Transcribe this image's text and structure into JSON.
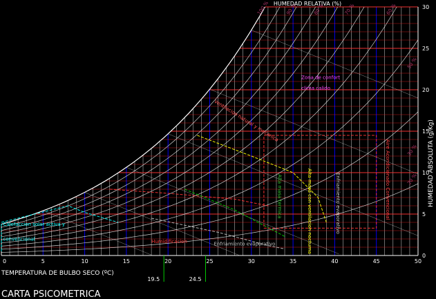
{
  "chart_data": {
    "type": "line",
    "title": "CARTA PSICOMETRICA",
    "xlabel": "TEMPERATURA DE BULBO SECO (ºC)",
    "ylabel": "HUMEDAD ABSOLUTA (g/Kg)",
    "top_label": "HUMEDAD RELATIVA (%)",
    "xlim": [
      0,
      50
    ],
    "ylim": [
      0,
      30
    ],
    "x_ticks": [
      0,
      5,
      10,
      15,
      20,
      25,
      30,
      35,
      40,
      45,
      50
    ],
    "y_ticks": [
      0,
      5,
      10,
      15,
      20,
      25,
      30
    ],
    "rh_curves": [
      10,
      20,
      30,
      40,
      50,
      60,
      70,
      80,
      90,
      100
    ],
    "rh_labels": [
      {
        "text": "100 %",
        "x": 31,
        "y": 29
      },
      {
        "text": "90 %",
        "x": 34.5,
        "y": 29
      },
      {
        "text": "80 %",
        "x": 37.8,
        "y": 29
      },
      {
        "text": "70 %",
        "x": 41.5,
        "y": 29
      },
      {
        "text": "60 %",
        "x": 46.5,
        "y": 29
      },
      {
        "text": "50 %",
        "x": 49,
        "y": 22.5
      },
      {
        "text": "30 %",
        "x": 49,
        "y": 12
      },
      {
        "text": "20 %",
        "x": 49,
        "y": 8.5
      }
    ],
    "markers": [
      {
        "label": "19.5",
        "x": 19.5,
        "color": "#00cc00"
      },
      {
        "label": "24.5",
        "x": 24.5,
        "color": "#00cc00"
      }
    ],
    "zones": [
      {
        "name": "Calefaccion solar activa y convencional",
        "color": "#00ffff",
        "points": [
          [
            0,
            0.5
          ],
          [
            0,
            4
          ],
          [
            8,
            6
          ],
          [
            10,
            5.2
          ],
          [
            12,
            4.6
          ],
          [
            14,
            4
          ]
        ]
      },
      {
        "name": "Ventilacion natural y mecanica",
        "color": "#ff3333",
        "points": [
          [
            13,
            8
          ],
          [
            20,
            7.5
          ],
          [
            28,
            6.8
          ],
          [
            32,
            6
          ]
        ]
      },
      {
        "name": "Alta masa termica",
        "color": "#00cc00",
        "points": [
          [
            22,
            8
          ],
          [
            28,
            5.5
          ],
          [
            34,
            2.3
          ]
        ]
      },
      {
        "name": "Alta masa con ventilacion nocturna",
        "color": "#ffff00",
        "points": [
          [
            23.5,
            14.5
          ],
          [
            30,
            12
          ],
          [
            35,
            10
          ],
          [
            38,
            7
          ],
          [
            39,
            4
          ]
        ]
      },
      {
        "name": "Enfriamiento evaporativo",
        "color": "#bbbbbb",
        "points": [
          [
            18,
            4.5
          ],
          [
            26,
            2.8
          ],
          [
            32,
            1.2
          ],
          [
            34,
            0.8
          ]
        ]
      },
      {
        "name": "Aire Acondicionado Convencional",
        "color": "#ff3333",
        "points": [
          [
            31.5,
            3.3
          ],
          [
            45,
            3.3
          ],
          [
            45,
            14.5
          ],
          [
            31.5,
            14.5
          ],
          [
            31.5,
            3.3
          ]
        ]
      }
    ],
    "labels": [
      {
        "text": "Calefaccion solar activa y",
        "x": 0.2,
        "y": 3.6,
        "color": "#00ffff"
      },
      {
        "text": "convencional",
        "x": 0.2,
        "y": 1.8,
        "color": "#00ffff"
      },
      {
        "text": "Ventilacion natural y mecanica",
        "x": 25.5,
        "y": 18.5,
        "color": "#ff5555",
        "rotate": 32
      },
      {
        "text": "Alta masa termica",
        "x": 33.2,
        "y": 9.8,
        "color": "#33cc33",
        "rotate": 90
      },
      {
        "text": "Alta masa con ventilacion nocturna",
        "x": 36.8,
        "y": 10.5,
        "color": "#ffff00",
        "rotate": 90
      },
      {
        "text": "Enfriamiento evaporativo",
        "x": 40.2,
        "y": 10,
        "color": "#cccccc",
        "rotate": 90
      },
      {
        "text": "Aire Acondicionado Convencional",
        "x": 46.2,
        "y": 14,
        "color": "#ff4444",
        "rotate": 90
      },
      {
        "text": "Enfriamiento evaporativo",
        "x": 25.5,
        "y": 1.2,
        "color": "#bbbbbb"
      },
      {
        "text": "Zona de confort",
        "x": 36,
        "y": 21.3,
        "color": "#ff44ff"
      },
      {
        "text": "clima calido",
        "x": 36,
        "y": 20.0,
        "color": "#ff44ff"
      },
      {
        "text": "Humidificacion",
        "x": 18,
        "y": 1.5,
        "color": "#ff3333"
      }
    ]
  }
}
